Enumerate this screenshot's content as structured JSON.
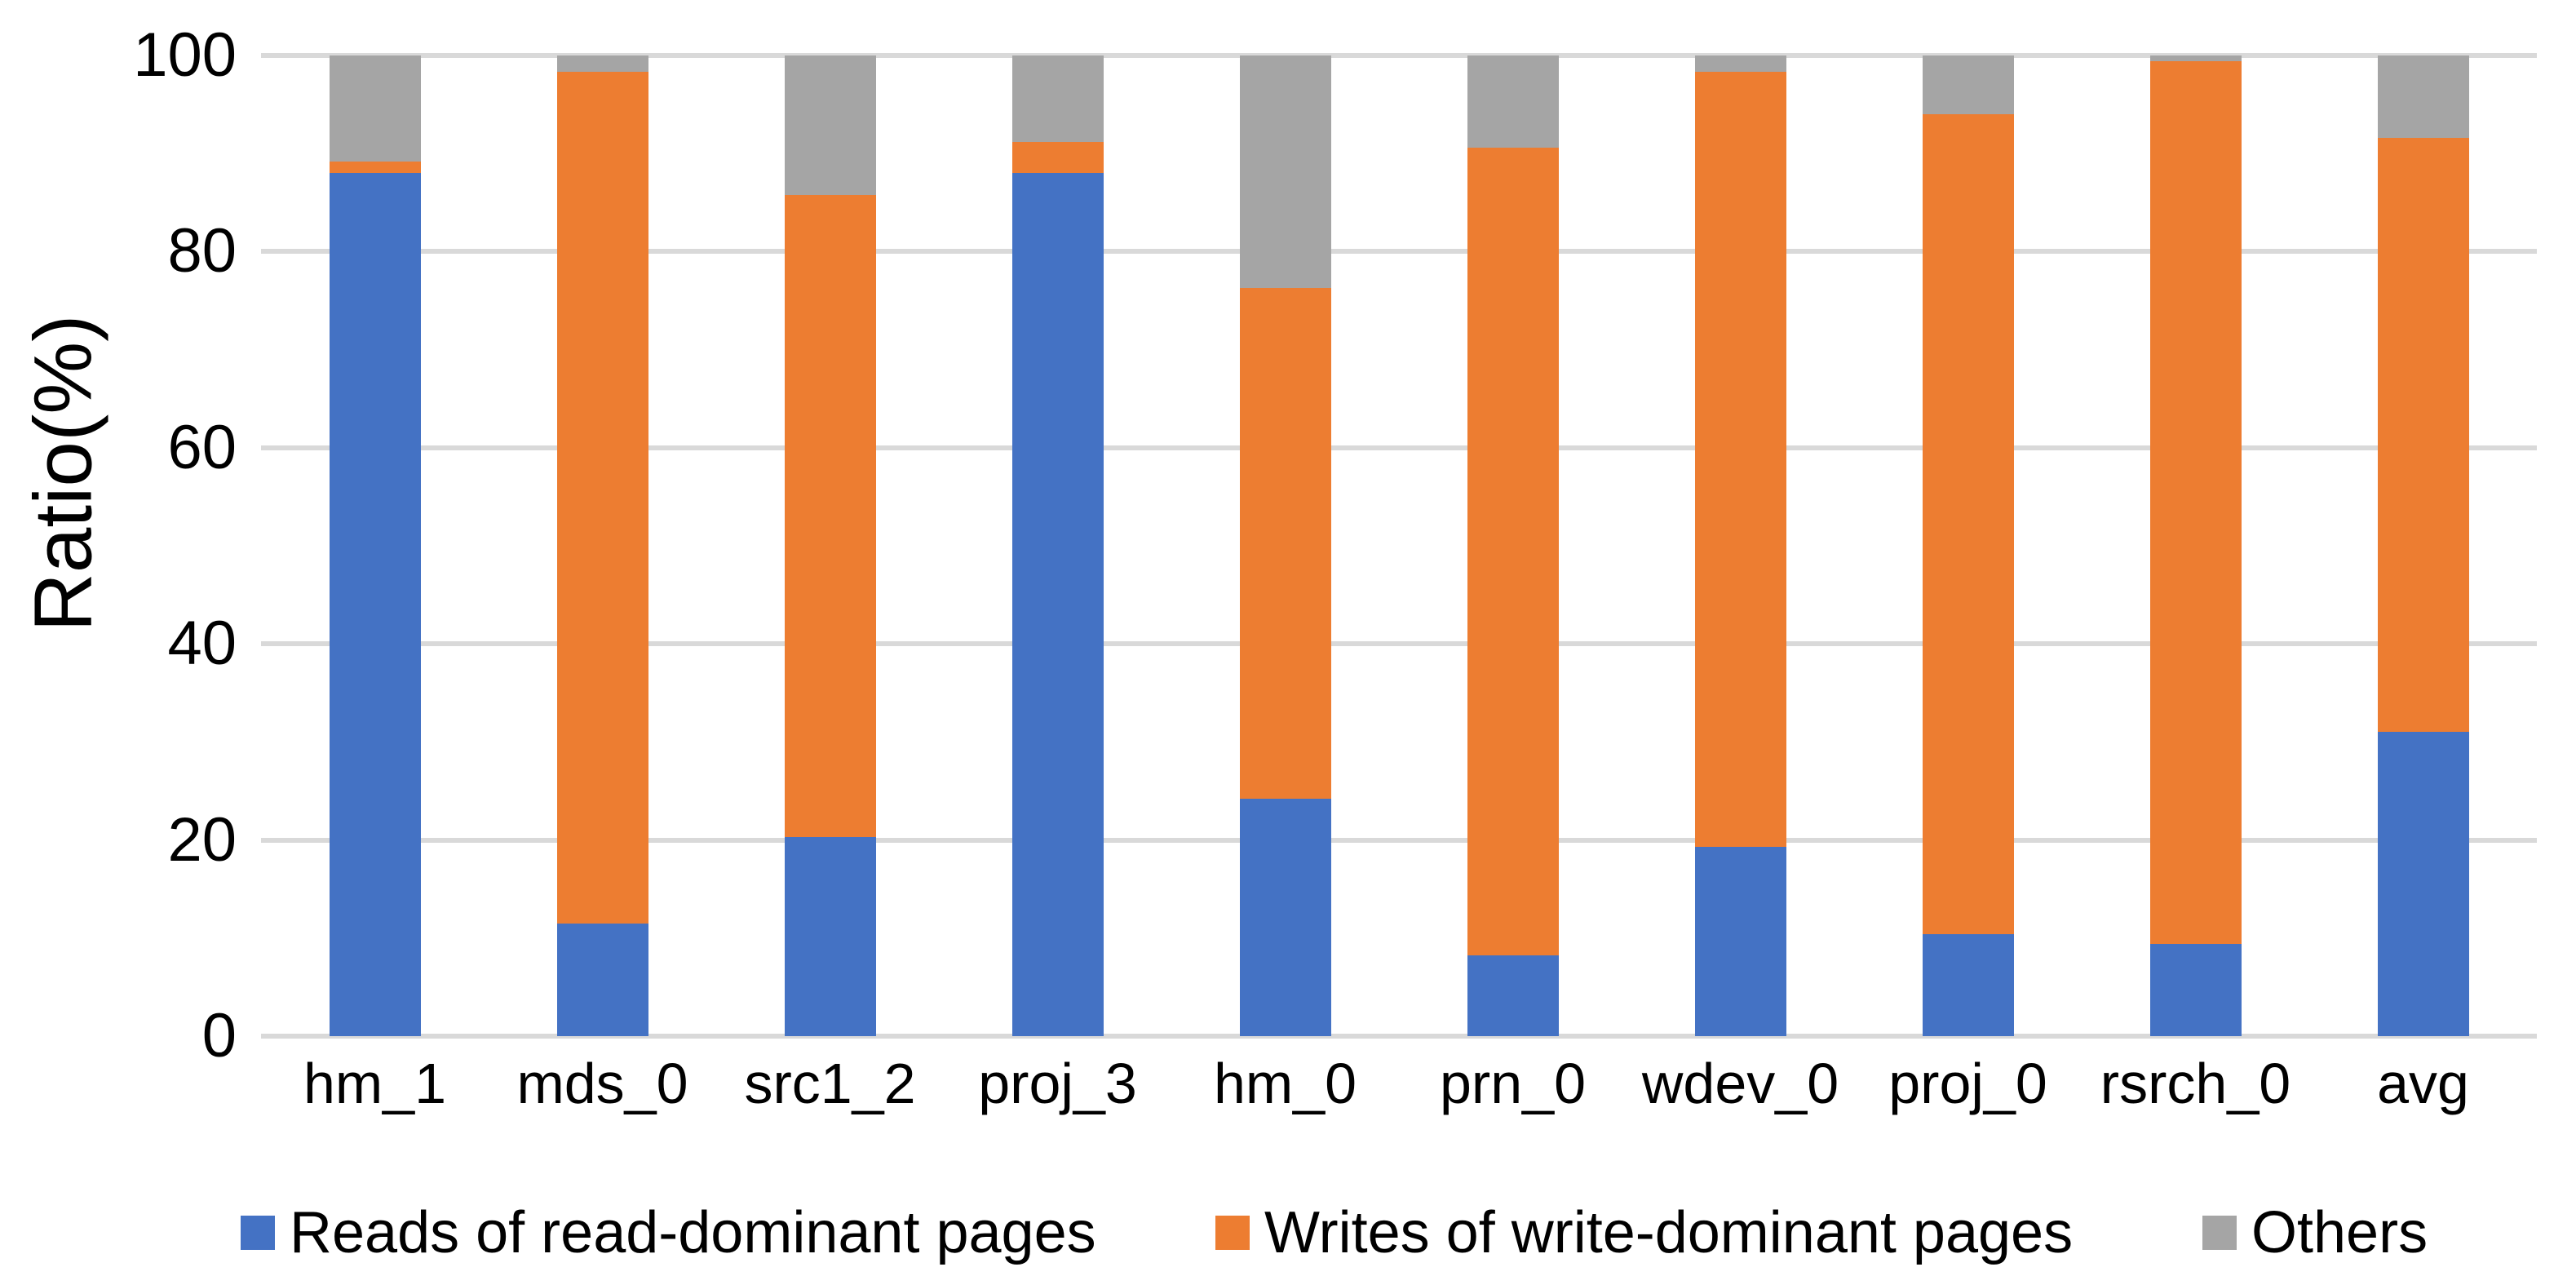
{
  "chart_data": {
    "type": "bar",
    "stacked": true,
    "title": "",
    "xlabel": "",
    "ylabel": "Ratio(%)",
    "ylim": [
      0,
      100
    ],
    "y_ticks": [
      0,
      20,
      40,
      60,
      80,
      100
    ],
    "grid": "horizontal",
    "gridline_color": "#D9D9D9",
    "background_color": "#FFFFFF",
    "text_color": "#000000",
    "legend_position": "bottom",
    "categories": [
      "hm_1",
      "mds_0",
      "src1_2",
      "proj_3",
      "hm_0",
      "prn_0",
      "wdev_0",
      "proj_0",
      "rsrch_0",
      "avg"
    ],
    "series": [
      {
        "name": "Reads of read-dominant pages",
        "color": "#4472C4",
        "values": [
          88.0,
          11.5,
          20.3,
          88.0,
          24.2,
          8.2,
          19.3,
          10.4,
          9.4,
          31.0
        ]
      },
      {
        "name": "Writes of write-dominant pages",
        "color": "#ED7D31",
        "values": [
          1.2,
          86.8,
          65.5,
          3.2,
          52.1,
          82.4,
          79.0,
          83.6,
          90.0,
          60.6
        ]
      },
      {
        "name": "Others",
        "color": "#A5A5A5",
        "values": [
          10.8,
          1.7,
          14.2,
          8.8,
          23.7,
          9.4,
          1.7,
          6.0,
          0.6,
          8.4
        ]
      }
    ]
  }
}
